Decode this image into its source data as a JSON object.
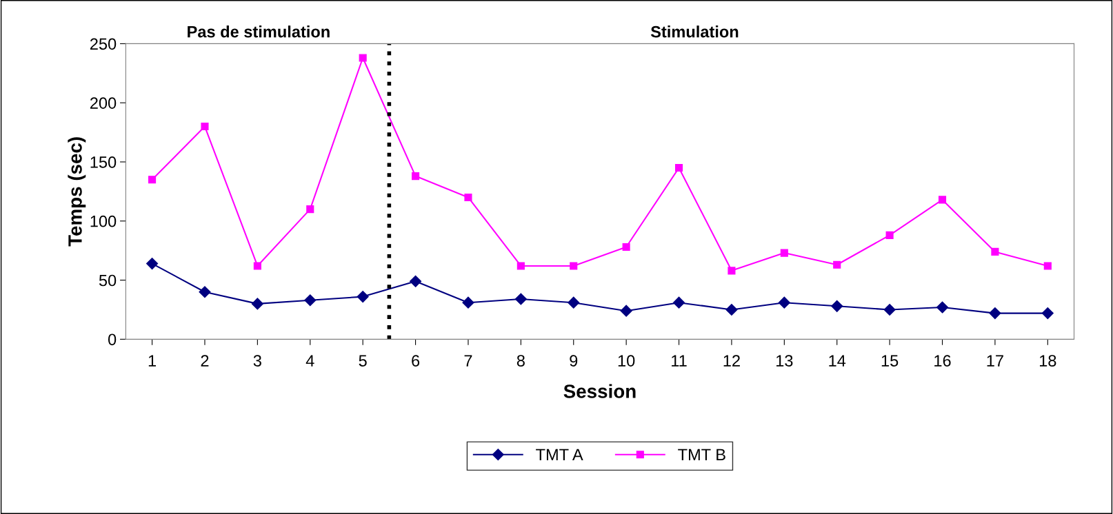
{
  "chart_data": {
    "type": "line",
    "xlabel": "Session",
    "ylabel": "Temps (sec)",
    "x": [
      1,
      2,
      3,
      4,
      5,
      6,
      7,
      8,
      9,
      10,
      11,
      12,
      13,
      14,
      15,
      16,
      17,
      18
    ],
    "xlim": [
      0.5,
      18.5
    ],
    "xticks": [
      1,
      2,
      3,
      4,
      5,
      6,
      7,
      8,
      9,
      10,
      11,
      12,
      13,
      14,
      15,
      16,
      17,
      18
    ],
    "ylim": [
      0,
      250
    ],
    "yticks": [
      0,
      50,
      100,
      150,
      200,
      250
    ],
    "series": [
      {
        "name": "TMT A",
        "color": "#000080",
        "marker": "diamond",
        "values": [
          64,
          40,
          30,
          33,
          36,
          49,
          31,
          34,
          31,
          24,
          31,
          25,
          31,
          28,
          25,
          27,
          22,
          22
        ]
      },
      {
        "name": "TMT B",
        "color": "#ff00ff",
        "marker": "square",
        "values": [
          135,
          180,
          62,
          110,
          238,
          138,
          120,
          62,
          62,
          78,
          145,
          58,
          73,
          63,
          88,
          118,
          74,
          62
        ]
      }
    ],
    "ref_lines": [
      {
        "axis": "x",
        "value": 5.5,
        "color": "#000000",
        "line_style": "dotted"
      }
    ],
    "annotations": [
      "Pas de stimulation",
      "Stimulation"
    ],
    "grid": false,
    "legend": "bottom"
  }
}
